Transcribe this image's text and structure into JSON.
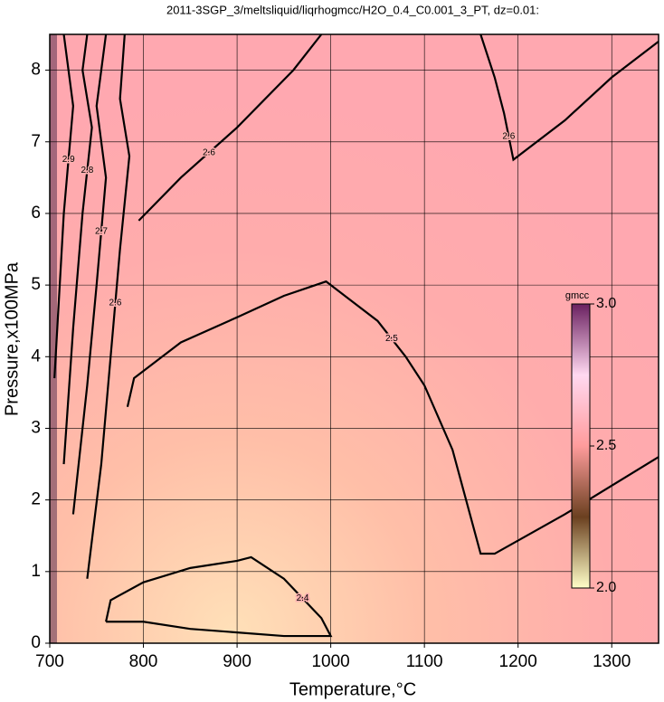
{
  "chart_data": {
    "type": "contour",
    "title": "2011-3SGP_3/meltsliquid/liqrhogmcc/H2O_0.4_C0.001_3_PT, dz=0.01:",
    "xlabel": "Temperature,°C",
    "ylabel": "Pressure,x100MPa",
    "xlim": [
      700,
      1350
    ],
    "ylim": [
      0,
      8.5
    ],
    "xticks": [
      700,
      800,
      900,
      1000,
      1100,
      1200,
      1300
    ],
    "yticks": [
      0,
      1,
      2,
      3,
      4,
      5,
      6,
      7,
      8
    ],
    "grid": true,
    "contours": [
      {
        "level": 2.4,
        "x": [
          760,
          765,
          800,
          850,
          900,
          915,
          950,
          990,
          1000,
          950,
          900,
          850,
          800,
          760
        ],
        "y": [
          0.3,
          0.6,
          0.85,
          1.05,
          1.15,
          1.2,
          0.9,
          0.35,
          0.1,
          0.1,
          0.15,
          0.2,
          0.3,
          0.3
        ]
      },
      {
        "level": 2.5,
        "x": [
          783,
          790,
          840,
          900,
          950,
          995,
          1050,
          1080,
          1100,
          1130,
          1160,
          1175,
          1250,
          1350
        ],
        "y": [
          3.3,
          3.7,
          4.2,
          4.55,
          4.85,
          5.05,
          4.5,
          4.0,
          3.6,
          2.7,
          1.25,
          1.25,
          1.8,
          2.6
        ]
      },
      {
        "level": 2.6,
        "x": [
          740,
          755,
          765,
          775,
          785,
          775,
          780
        ],
        "y": [
          0.9,
          2.5,
          4.0,
          5.5,
          6.8,
          7.6,
          8.5
        ]
      },
      {
        "level": 2.6,
        "x": [
          795,
          840,
          900,
          960,
          990
        ],
        "y": [
          5.9,
          6.5,
          7.2,
          8.0,
          8.5
        ]
      },
      {
        "level": 2.6,
        "x": [
          1160,
          1175,
          1185,
          1195,
          1250,
          1300,
          1350
        ],
        "y": [
          8.5,
          7.9,
          7.4,
          6.75,
          7.3,
          7.9,
          8.4
        ]
      },
      {
        "level": 2.7,
        "x": [
          725,
          740,
          750,
          760,
          750,
          760
        ],
        "y": [
          1.8,
          3.6,
          5.0,
          6.5,
          7.5,
          8.5
        ]
      },
      {
        "level": 2.8,
        "x": [
          715,
          725,
          735,
          745,
          735,
          740
        ],
        "y": [
          2.5,
          4.4,
          6.0,
          7.2,
          8.0,
          8.5
        ]
      },
      {
        "level": 2.9,
        "x": [
          705,
          715,
          725,
          715
        ],
        "y": [
          3.7,
          6.0,
          7.5,
          8.5
        ]
      }
    ],
    "colorbar": {
      "label": "gmcc",
      "lim": [
        2.0,
        3.0
      ],
      "ticks": [
        {
          "value": 2.0,
          "label": "2.0"
        },
        {
          "value": 2.5,
          "label": "2.5"
        },
        {
          "value": 3.0,
          "label": "3.0"
        }
      ]
    }
  }
}
